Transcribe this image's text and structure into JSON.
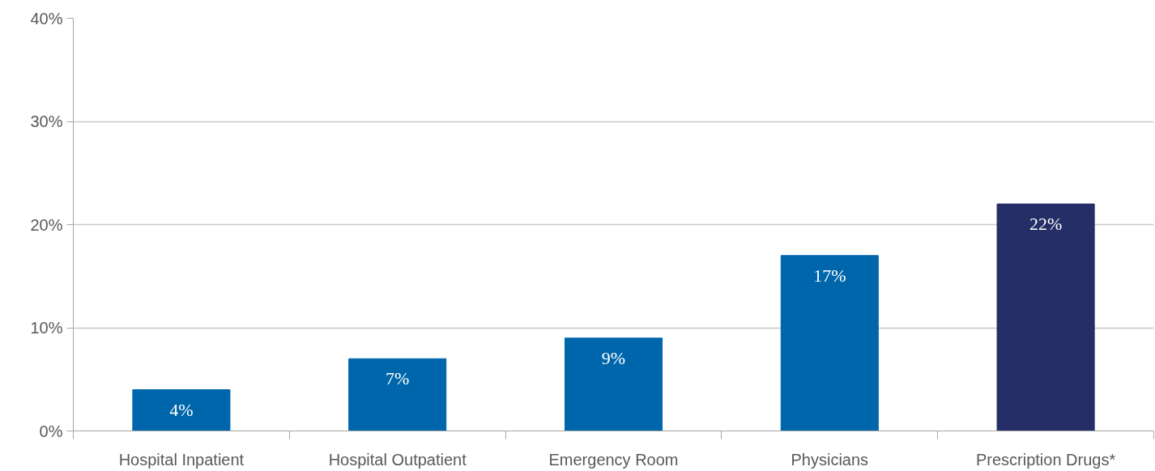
{
  "chart_data": {
    "type": "bar",
    "categories": [
      "Hospital Inpatient",
      "Hospital Outpatient",
      "Emergency Room",
      "Physicians",
      "Prescription Drugs*"
    ],
    "values": [
      4,
      7,
      9,
      17,
      22
    ],
    "colors": [
      "#0066ab",
      "#0066ab",
      "#0066ab",
      "#0066ab",
      "#252e66"
    ],
    "value_labels": [
      "4%",
      "7%",
      "9%",
      "17%",
      "22%"
    ],
    "ylim": [
      0,
      40
    ],
    "yticks": [
      {
        "value": 0,
        "label": "0%"
      },
      {
        "value": 10,
        "label": "10%"
      },
      {
        "value": 20,
        "label": "20%"
      },
      {
        "value": 30,
        "label": "30%"
      },
      {
        "value": 40,
        "label": "40%"
      }
    ],
    "grid": "y"
  }
}
